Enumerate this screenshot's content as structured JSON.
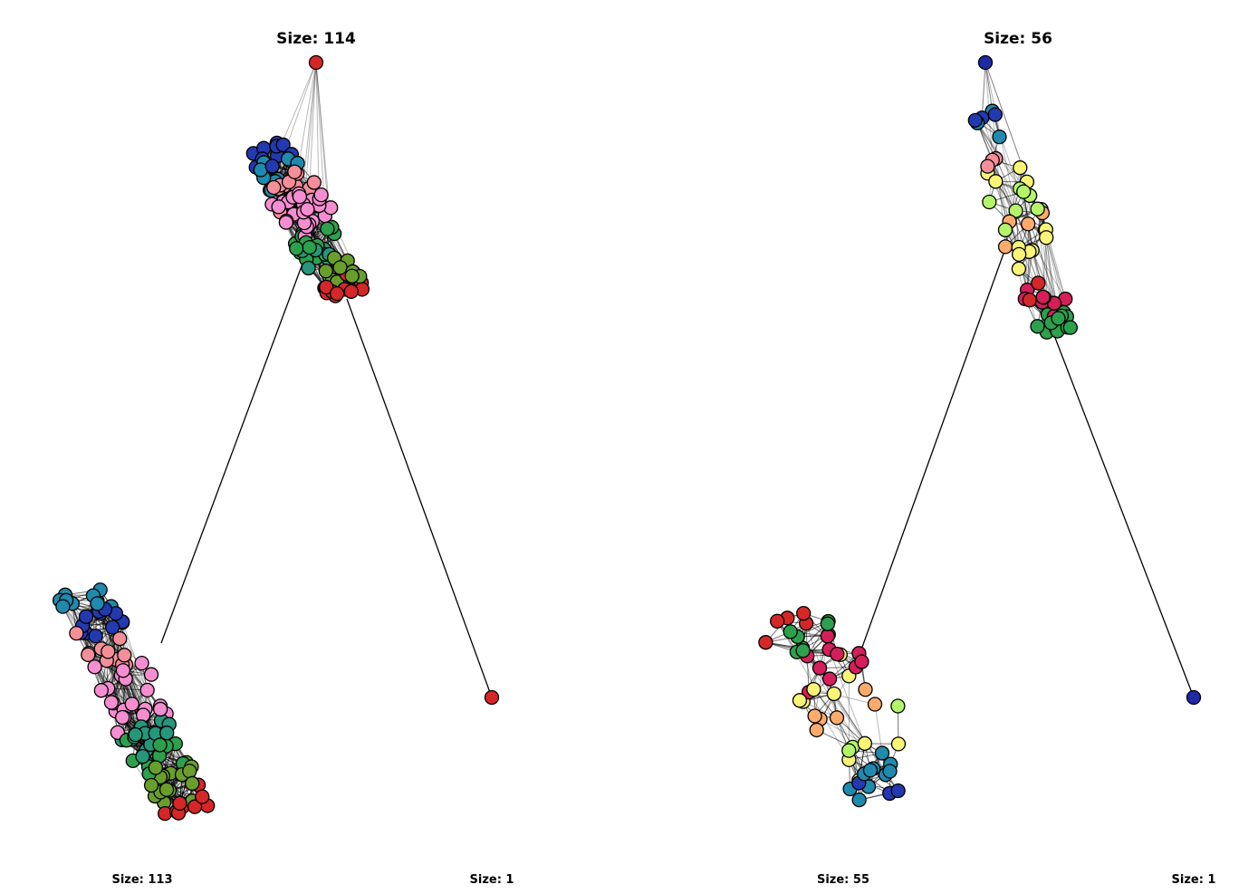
{
  "panels": [
    {
      "title": "Size: 114",
      "components": [
        {
          "label": "Size: 113"
        },
        {
          "label": "Size: 1"
        }
      ]
    },
    {
      "title": "Size: 56",
      "components": [
        {
          "label": "Size: 55"
        },
        {
          "label": "Size: 1"
        }
      ]
    }
  ],
  "colors": {
    "red": "#d62728",
    "blue": "#2339b0",
    "teal": "#1f8aad",
    "pink": "#f58ed0",
    "salmon": "#f48f9a",
    "green": "#2ca04c",
    "seagreen": "#26977a",
    "olive": "#6a9e2c",
    "crimson": "#d41f5a",
    "orange": "#fdab6d",
    "yellow": "#faf577",
    "lime": "#b4f56a",
    "navy": "#1f2aa6"
  }
}
